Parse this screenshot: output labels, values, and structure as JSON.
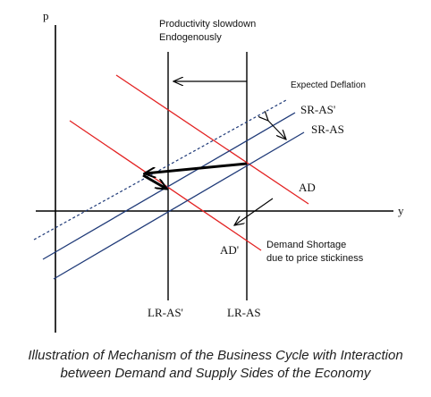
{
  "axes": {
    "y_axis_label": "p",
    "x_axis_label": "y"
  },
  "annotations": {
    "productivity_line1": "Productivity slowdown",
    "productivity_line2": "Endogenously",
    "expected_deflation": "Expected Deflation",
    "demand_shortage_line1": "Demand Shortage",
    "demand_shortage_line2": "due to price stickiness"
  },
  "curve_labels": {
    "sr_as_prime": "SR-AS'",
    "sr_as": "SR-AS",
    "ad": "AD",
    "ad_prime": "AD'",
    "lr_as_prime": "LR-AS'",
    "lr_as": "LR-AS"
  },
  "caption": {
    "line1": "Illustration of Mechanism of the Business Cycle with Interaction",
    "line2": "between Demand and Supply Sides of the Economy"
  },
  "colors": {
    "ad": "#e32222",
    "sr_as": "#1f3a78",
    "axis": "#000000"
  }
}
